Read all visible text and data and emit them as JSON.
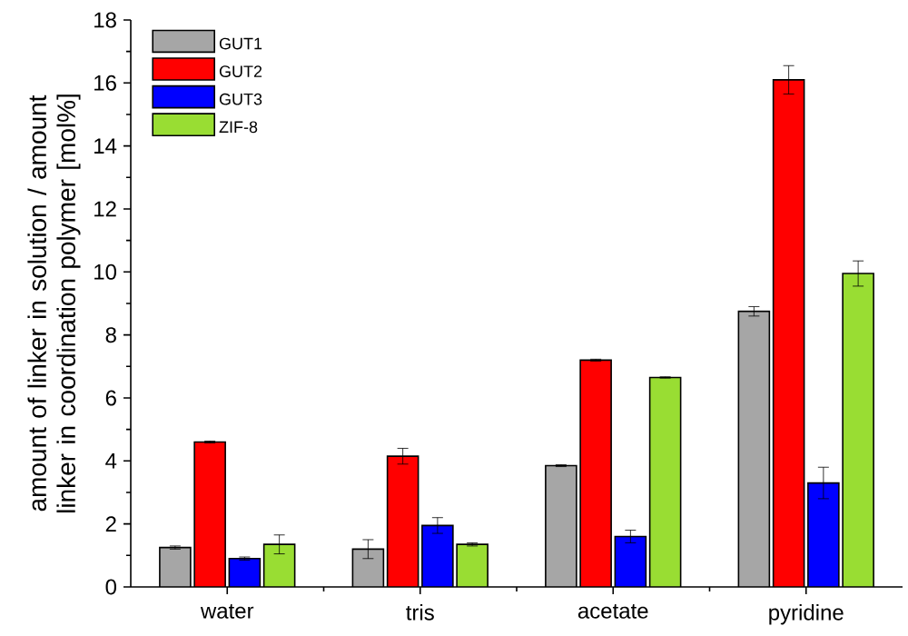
{
  "chart_data": {
    "type": "bar",
    "ylabel": "amount of linker in solution / amount linker in coordination polymer [mol%]",
    "categories": [
      "water",
      "tris",
      "acetate",
      "pyridine"
    ],
    "series": [
      {
        "name": "GUT1",
        "color": "#a6a6a6",
        "values": [
          1.25,
          1.2,
          3.85,
          8.75
        ],
        "errors": [
          0.05,
          0.3,
          0.03,
          0.15
        ]
      },
      {
        "name": "GUT2",
        "color": "#ff0000",
        "values": [
          4.6,
          4.15,
          7.2,
          16.1
        ],
        "errors": [
          0.03,
          0.25,
          0.03,
          0.45
        ]
      },
      {
        "name": "GUT3",
        "color": "#0000ff",
        "values": [
          0.9,
          1.95,
          1.6,
          3.3
        ],
        "errors": [
          0.05,
          0.25,
          0.2,
          0.5
        ]
      },
      {
        "name": "ZIF-8",
        "color": "#99dd33",
        "values": [
          1.35,
          1.35,
          6.65,
          9.95
        ],
        "errors": [
          0.3,
          0.05,
          0.02,
          0.4
        ]
      }
    ],
    "ylim": [
      0,
      18
    ],
    "yticks": [
      0,
      2,
      4,
      6,
      8,
      10,
      12,
      14,
      16,
      18
    ],
    "grid": false,
    "legend": "top left"
  }
}
